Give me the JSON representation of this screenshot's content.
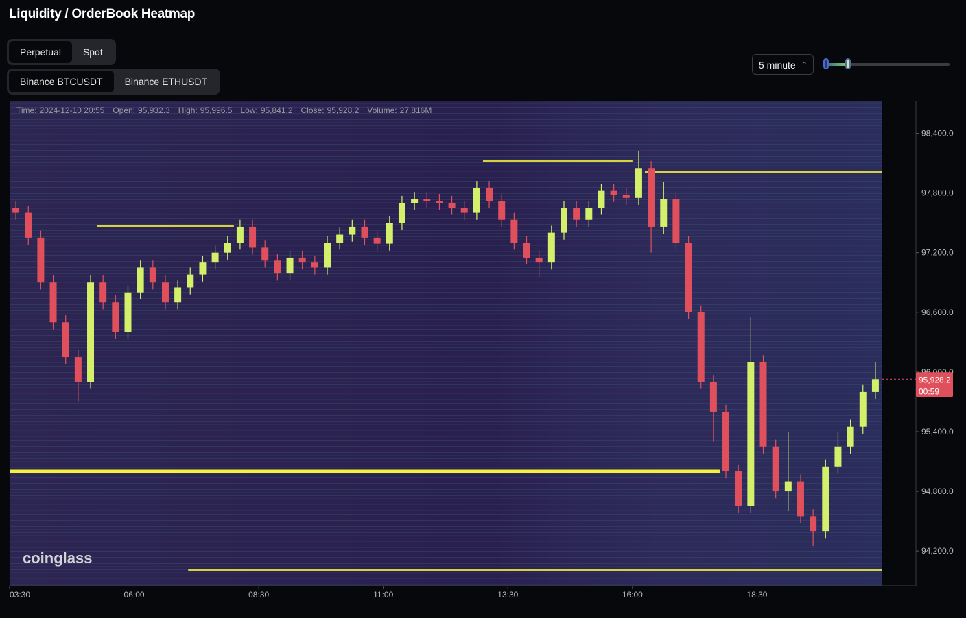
{
  "header": {
    "title": "Liquidity / OrderBook Heatmap"
  },
  "tabs": {
    "market": [
      "Perpetual",
      "Spot"
    ],
    "pair": [
      "Binance BTCUSDT",
      "Binance ETHUSDT"
    ]
  },
  "interval": "5 minute",
  "info": [
    {
      "label": "Time:",
      "value": "2024-12-10 20:55"
    },
    {
      "label": "Open:",
      "value": "95,932.3"
    },
    {
      "label": "High:",
      "value": "95,996.5"
    },
    {
      "label": "Low:",
      "value": "95,841.2"
    },
    {
      "label": "Close:",
      "value": "95,928.2"
    },
    {
      "label": "Volume:",
      "value": "27.816M"
    }
  ],
  "watermark": "coinglass",
  "chart_data": {
    "type": "candlestick",
    "up_color": "#d4f06a",
    "down_color": "#e0505c",
    "level_color": "#f5f03a",
    "xlim": [
      "03:30",
      "21:00"
    ],
    "xticks": [
      "03:30",
      "06:00",
      "08:30",
      "11:00",
      "13:30",
      "16:00",
      "18:30"
    ],
    "ylim": [
      93850,
      98720
    ],
    "yticks": [
      {
        "value": 98400,
        "label": "98,400.0"
      },
      {
        "value": 97800,
        "label": "97,800.0"
      },
      {
        "value": 97200,
        "label": "97,200.0"
      },
      {
        "value": 96600,
        "label": "96,600.0"
      },
      {
        "value": 96000,
        "label": "96,000.0"
      },
      {
        "value": 95400,
        "label": "95,400.0"
      },
      {
        "value": 94800,
        "label": "94,800.0"
      },
      {
        "value": 94200,
        "label": "94,200.0"
      }
    ],
    "last_price": 95928.2,
    "last_price_label": "95,928.2",
    "countdown": "00:59",
    "levels": [
      {
        "price": 95000,
        "from": "03:30",
        "to": "17:45"
      },
      {
        "price": 94010,
        "from": "07:05",
        "to": "21:00"
      },
      {
        "price": 98008,
        "from": "16:15",
        "to": "21:00"
      },
      {
        "price": 97470,
        "from": "05:15",
        "to": "08:00"
      },
      {
        "price": 98120,
        "from": "13:00",
        "to": "16:00"
      }
    ],
    "candles": [
      {
        "x": "03:30",
        "open": 97650,
        "high": 97720,
        "low": 97530,
        "close": 97600
      },
      {
        "x": "03:45",
        "open": 97600,
        "high": 97670,
        "low": 97280,
        "close": 97350
      },
      {
        "x": "04:00",
        "open": 97350,
        "high": 97420,
        "low": 96830,
        "close": 96900
      },
      {
        "x": "04:15",
        "open": 96900,
        "high": 96970,
        "low": 96430,
        "close": 96500
      },
      {
        "x": "04:30",
        "open": 96500,
        "high": 96570,
        "low": 96080,
        "close": 96150
      },
      {
        "x": "04:45",
        "open": 96150,
        "high": 96220,
        "low": 95700,
        "close": 95900
      },
      {
        "x": "05:00",
        "open": 95900,
        "high": 96970,
        "low": 95830,
        "close": 96900
      },
      {
        "x": "05:15",
        "open": 96900,
        "high": 96970,
        "low": 96630,
        "close": 96700
      },
      {
        "x": "05:30",
        "open": 96700,
        "high": 96770,
        "low": 96330,
        "close": 96400
      },
      {
        "x": "05:45",
        "open": 96400,
        "high": 96870,
        "low": 96330,
        "close": 96800
      },
      {
        "x": "06:00",
        "open": 96800,
        "high": 97120,
        "low": 96730,
        "close": 97050
      },
      {
        "x": "06:15",
        "open": 97050,
        "high": 97120,
        "low": 96830,
        "close": 96900
      },
      {
        "x": "06:30",
        "open": 96900,
        "high": 96970,
        "low": 96630,
        "close": 96700
      },
      {
        "x": "06:45",
        "open": 96700,
        "high": 96920,
        "low": 96630,
        "close": 96850
      },
      {
        "x": "07:00",
        "open": 96850,
        "high": 97050,
        "low": 96780,
        "close": 96980
      },
      {
        "x": "07:15",
        "open": 96980,
        "high": 97170,
        "low": 96910,
        "close": 97100
      },
      {
        "x": "07:30",
        "open": 97100,
        "high": 97270,
        "low": 97030,
        "close": 97200
      },
      {
        "x": "07:45",
        "open": 97200,
        "high": 97370,
        "low": 97130,
        "close": 97300
      },
      {
        "x": "08:00",
        "open": 97300,
        "high": 97530,
        "low": 97230,
        "close": 97460
      },
      {
        "x": "08:15",
        "open": 97460,
        "high": 97530,
        "low": 97180,
        "close": 97250
      },
      {
        "x": "08:30",
        "open": 97250,
        "high": 97320,
        "low": 97050,
        "close": 97120
      },
      {
        "x": "08:45",
        "open": 97120,
        "high": 97190,
        "low": 96920,
        "close": 96990
      },
      {
        "x": "09:00",
        "open": 96990,
        "high": 97220,
        "low": 96920,
        "close": 97150
      },
      {
        "x": "09:15",
        "open": 97150,
        "high": 97220,
        "low": 97030,
        "close": 97100
      },
      {
        "x": "09:30",
        "open": 97100,
        "high": 97170,
        "low": 96980,
        "close": 97050
      },
      {
        "x": "09:45",
        "open": 97050,
        "high": 97370,
        "low": 96980,
        "close": 97300
      },
      {
        "x": "10:00",
        "open": 97300,
        "high": 97450,
        "low": 97230,
        "close": 97380
      },
      {
        "x": "10:15",
        "open": 97380,
        "high": 97530,
        "low": 97310,
        "close": 97460
      },
      {
        "x": "10:30",
        "open": 97460,
        "high": 97530,
        "low": 97280,
        "close": 97350
      },
      {
        "x": "10:45",
        "open": 97350,
        "high": 97420,
        "low": 97220,
        "close": 97290
      },
      {
        "x": "11:00",
        "open": 97290,
        "high": 97570,
        "low": 97220,
        "close": 97500
      },
      {
        "x": "11:15",
        "open": 97500,
        "high": 97770,
        "low": 97430,
        "close": 97700
      },
      {
        "x": "11:30",
        "open": 97700,
        "high": 97810,
        "low": 97630,
        "close": 97740
      },
      {
        "x": "11:45",
        "open": 97740,
        "high": 97810,
        "low": 97650,
        "close": 97720
      },
      {
        "x": "12:00",
        "open": 97720,
        "high": 97790,
        "low": 97630,
        "close": 97700
      },
      {
        "x": "12:15",
        "open": 97700,
        "high": 97770,
        "low": 97580,
        "close": 97650
      },
      {
        "x": "12:30",
        "open": 97650,
        "high": 97720,
        "low": 97530,
        "close": 97600
      },
      {
        "x": "12:45",
        "open": 97600,
        "high": 97920,
        "low": 97530,
        "close": 97850
      },
      {
        "x": "13:00",
        "open": 97850,
        "high": 97920,
        "low": 97650,
        "close": 97720
      },
      {
        "x": "13:15",
        "open": 97720,
        "high": 97790,
        "low": 97460,
        "close": 97530
      },
      {
        "x": "13:30",
        "open": 97530,
        "high": 97600,
        "low": 97230,
        "close": 97300
      },
      {
        "x": "13:45",
        "open": 97300,
        "high": 97370,
        "low": 97080,
        "close": 97150
      },
      {
        "x": "14:00",
        "open": 97150,
        "high": 97220,
        "low": 96950,
        "close": 97100
      },
      {
        "x": "14:15",
        "open": 97100,
        "high": 97470,
        "low": 97030,
        "close": 97400
      },
      {
        "x": "14:30",
        "open": 97400,
        "high": 97720,
        "low": 97330,
        "close": 97650
      },
      {
        "x": "14:45",
        "open": 97650,
        "high": 97720,
        "low": 97460,
        "close": 97530
      },
      {
        "x": "15:00",
        "open": 97530,
        "high": 97720,
        "low": 97460,
        "close": 97650
      },
      {
        "x": "15:15",
        "open": 97650,
        "high": 97890,
        "low": 97580,
        "close": 97820
      },
      {
        "x": "15:30",
        "open": 97820,
        "high": 97890,
        "low": 97710,
        "close": 97780
      },
      {
        "x": "15:45",
        "open": 97780,
        "high": 97850,
        "low": 97680,
        "close": 97750
      },
      {
        "x": "16:00",
        "open": 97750,
        "high": 98220,
        "low": 97680,
        "close": 98050
      },
      {
        "x": "16:15",
        "open": 98050,
        "high": 98120,
        "low": 97200,
        "close": 97460
      },
      {
        "x": "16:30",
        "open": 97460,
        "high": 97910,
        "low": 97390,
        "close": 97740
      },
      {
        "x": "16:45",
        "open": 97740,
        "high": 97810,
        "low": 97230,
        "close": 97300
      },
      {
        "x": "17:00",
        "open": 97300,
        "high": 97370,
        "low": 96530,
        "close": 96600
      },
      {
        "x": "17:15",
        "open": 96600,
        "high": 96670,
        "low": 95830,
        "close": 95900
      },
      {
        "x": "17:30",
        "open": 95900,
        "high": 95970,
        "low": 95300,
        "close": 95600
      },
      {
        "x": "17:45",
        "open": 95600,
        "high": 95670,
        "low": 94930,
        "close": 95000
      },
      {
        "x": "18:00",
        "open": 95000,
        "high": 95070,
        "low": 94580,
        "close": 94650
      },
      {
        "x": "18:15",
        "open": 94650,
        "high": 96550,
        "low": 94580,
        "close": 96100
      },
      {
        "x": "18:30",
        "open": 96100,
        "high": 96170,
        "low": 95180,
        "close": 95250
      },
      {
        "x": "18:45",
        "open": 95250,
        "high": 95320,
        "low": 94730,
        "close": 94800
      },
      {
        "x": "19:00",
        "open": 94800,
        "high": 95400,
        "low": 94600,
        "close": 94900
      },
      {
        "x": "19:15",
        "open": 94900,
        "high": 94970,
        "low": 94480,
        "close": 94550
      },
      {
        "x": "19:30",
        "open": 94550,
        "high": 94620,
        "low": 94250,
        "close": 94400
      },
      {
        "x": "19:45",
        "open": 94400,
        "high": 95120,
        "low": 94330,
        "close": 95050
      },
      {
        "x": "20:00",
        "open": 95050,
        "high": 95400,
        "low": 94980,
        "close": 95250
      },
      {
        "x": "20:15",
        "open": 95250,
        "high": 95520,
        "low": 95180,
        "close": 95450
      },
      {
        "x": "20:30",
        "open": 95450,
        "high": 95870,
        "low": 95380,
        "close": 95800
      },
      {
        "x": "20:45",
        "open": 95800,
        "high": 96100,
        "low": 95730,
        "close": 95928.2
      }
    ]
  }
}
